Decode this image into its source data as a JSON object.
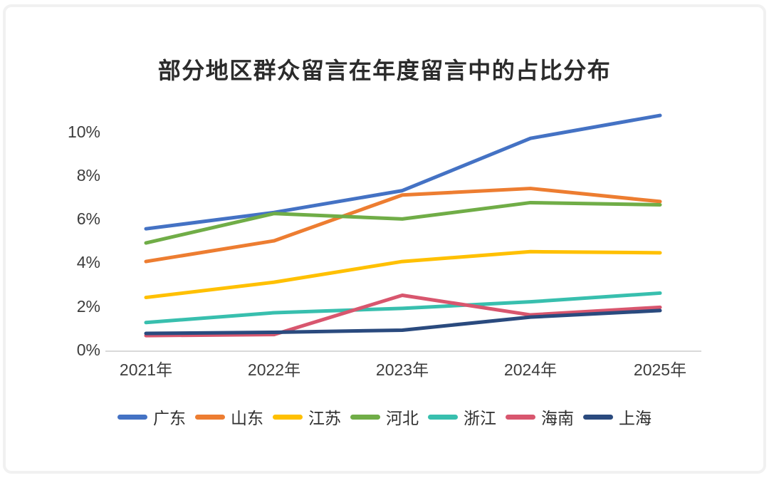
{
  "frame": {
    "background": "#ffffff",
    "border_color": "#f1f1f1",
    "axis_line_color": "#d9d9d9",
    "text_color": "#3d3d3d"
  },
  "chart_data": {
    "type": "line",
    "title": "部分地区群众留言在年度留言中的占比分布",
    "categories": [
      "2021年",
      "2022年",
      "2023年",
      "2024年",
      "2025年"
    ],
    "y_ticks": [
      "0%",
      "2%",
      "4%",
      "6%",
      "8%",
      "10%"
    ],
    "ylim": [
      0,
      11
    ],
    "y_unit": "%",
    "grid": false,
    "legend_position": "bottom",
    "series": [
      {
        "key": "guangdong",
        "name": "广东",
        "color": "#4472C4",
        "values": [
          5.55,
          6.3,
          7.3,
          9.7,
          10.75
        ]
      },
      {
        "key": "shandong",
        "name": "山东",
        "color": "#ED7D31",
        "values": [
          4.05,
          5.0,
          7.1,
          7.4,
          6.8
        ]
      },
      {
        "key": "jiangsu",
        "name": "江苏",
        "color": "#FFC000",
        "values": [
          2.4,
          3.1,
          4.05,
          4.5,
          4.45
        ]
      },
      {
        "key": "hebei",
        "name": "河北",
        "color": "#70AD47",
        "values": [
          4.9,
          6.25,
          6.0,
          6.75,
          6.65
        ]
      },
      {
        "key": "zhejiang",
        "name": "浙江",
        "color": "#38BFAE",
        "values": [
          1.25,
          1.7,
          1.9,
          2.2,
          2.6
        ]
      },
      {
        "key": "hainan",
        "name": "海南",
        "color": "#D8566E",
        "values": [
          0.65,
          0.7,
          2.5,
          1.6,
          1.95
        ]
      },
      {
        "key": "shanghai",
        "name": "上海",
        "color": "#2A4A7E",
        "values": [
          0.75,
          0.8,
          0.9,
          1.5,
          1.8
        ]
      }
    ]
  }
}
